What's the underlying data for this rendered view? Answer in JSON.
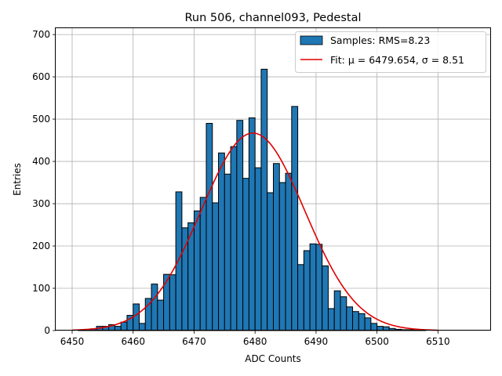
{
  "chart_data": {
    "type": "bar",
    "title": "Run 506, channel093, Pedestal",
    "xlabel": "ADC Counts",
    "ylabel": "Entries",
    "xlim": [
      6447.3,
      6518.7
    ],
    "ylim": [
      0,
      715
    ],
    "xticks": [
      6450,
      6460,
      6470,
      6480,
      6490,
      6500,
      6510
    ],
    "yticks": [
      0,
      100,
      200,
      300,
      400,
      500,
      600,
      700
    ],
    "grid": true,
    "legend_position": "top-right",
    "histogram": {
      "name": "Samples: RMS=8.23",
      "color": "#1f77b4",
      "bin_start": 6450,
      "bin_width": 1,
      "counts": [
        0,
        1,
        2,
        4,
        10,
        10,
        14,
        10,
        20,
        36,
        63,
        17,
        76,
        110,
        72,
        133,
        132,
        328,
        243,
        255,
        283,
        315,
        490,
        302,
        420,
        370,
        435,
        497,
        360,
        503,
        385,
        618,
        326,
        395,
        350,
        372,
        530,
        156,
        189,
        205,
        204,
        153,
        52,
        94,
        80,
        56,
        45,
        40,
        30,
        17,
        10,
        9,
        5,
        3,
        2,
        2,
        1,
        1,
        0,
        0,
        0,
        0,
        0,
        0,
        0,
        0
      ]
    },
    "fit": {
      "name": "Fit: μ = 6479.654, σ = 8.51",
      "color": "#e00000",
      "mu": 6479.654,
      "sigma": 8.51,
      "amplitude": 467,
      "x_range": [
        6450,
        6510
      ]
    }
  }
}
